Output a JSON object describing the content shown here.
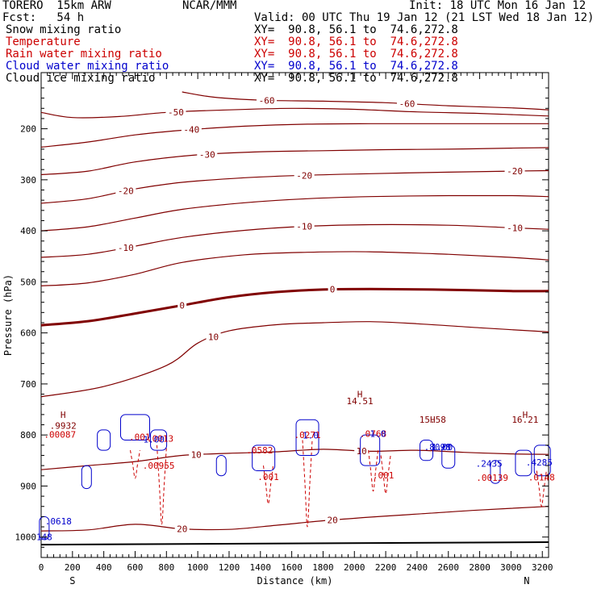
{
  "header": {
    "model": "TORERO  15km ARW",
    "center": "NCAR/MMM",
    "init": "Init: 18 UTC Mon 16 Jan 12",
    "fcst": "Fcst:   54 h",
    "valid": "Valid: 00 UTC Thu 19 Jan 12 (21 LST Wed 18 Jan 12)",
    "fields": [
      {
        "name": "Snow mixing ratio",
        "xy": "XY=  90.8, 56.1 to  74.6,272.8",
        "color": "#000000"
      },
      {
        "name": "Temperature",
        "xy": "XY=  90.8, 56.1 to  74.6,272.8",
        "color": "#cc0000"
      },
      {
        "name": "Rain water mixing ratio",
        "xy": "XY=  90.8, 56.1 to  74.6,272.8",
        "color": "#cc0000"
      },
      {
        "name": "Cloud water mixing ratio",
        "xy": "XY=  90.8, 56.1 to  74.6,272.8",
        "color": "#0000cc"
      },
      {
        "name": "Cloud ice mixing ratio",
        "xy": "XY=  90.8, 56.1 to  74.6,272.8",
        "color": "#000000"
      }
    ]
  },
  "chart_data": {
    "type": "contour",
    "xlabel": "Distance (km)",
    "ylabel": "Pressure (hPa)",
    "xlim": [
      0,
      3240
    ],
    "ylim": [
      1040,
      90
    ],
    "x_ticks": [
      0,
      200,
      400,
      600,
      800,
      1000,
      1200,
      1400,
      1600,
      1800,
      2000,
      2200,
      2400,
      2600,
      2800,
      3000,
      3200
    ],
    "y_ticks": [
      200,
      300,
      400,
      500,
      600,
      700,
      800,
      900,
      1000
    ],
    "end_labels": {
      "left": "S",
      "right": "N"
    },
    "temperature_contours": [
      {
        "level": -60,
        "labels": [
          "-60",
          "-60"
        ],
        "points": [
          [
            900,
            128
          ],
          [
            1100,
            138
          ],
          [
            1400,
            144
          ],
          [
            1800,
            146
          ],
          [
            2200,
            149
          ],
          [
            2600,
            155
          ],
          [
            3000,
            159
          ],
          [
            3240,
            163
          ]
        ]
      },
      {
        "level": -50,
        "labels": [
          "-50"
        ],
        "points": [
          [
            0,
            168
          ],
          [
            200,
            178
          ],
          [
            500,
            176
          ],
          [
            800,
            168
          ],
          [
            1200,
            163
          ],
          [
            1600,
            160
          ],
          [
            2000,
            162
          ],
          [
            2400,
            167
          ],
          [
            2800,
            170
          ],
          [
            3240,
            175
          ]
        ]
      },
      {
        "level": -40,
        "labels": [
          "-40"
        ],
        "points": [
          [
            0,
            236
          ],
          [
            300,
            226
          ],
          [
            600,
            212
          ],
          [
            900,
            203
          ],
          [
            1300,
            195
          ],
          [
            1700,
            191
          ],
          [
            2100,
            190
          ],
          [
            2500,
            190
          ],
          [
            2900,
            190
          ],
          [
            3240,
            190
          ]
        ]
      },
      {
        "level": -30,
        "labels": [
          "-30"
        ],
        "points": [
          [
            0,
            290
          ],
          [
            300,
            283
          ],
          [
            600,
            265
          ],
          [
            1000,
            251
          ],
          [
            1400,
            245
          ],
          [
            1800,
            243
          ],
          [
            2200,
            241
          ],
          [
            2600,
            240
          ],
          [
            3000,
            238
          ],
          [
            3240,
            237
          ]
        ]
      },
      {
        "level": -20,
        "labels": [
          "-20",
          "-20",
          "-20"
        ],
        "points": [
          [
            0,
            346
          ],
          [
            300,
            337
          ],
          [
            600,
            318
          ],
          [
            900,
            305
          ],
          [
            1300,
            296
          ],
          [
            1700,
            291
          ],
          [
            2100,
            288
          ],
          [
            2600,
            285
          ],
          [
            3000,
            283
          ],
          [
            3240,
            282
          ]
        ]
      },
      {
        "level": -20.5,
        "labels": [],
        "points": [
          [
            0,
            400
          ],
          [
            300,
            392
          ],
          [
            600,
            375
          ],
          [
            900,
            358
          ],
          [
            1300,
            345
          ],
          [
            1700,
            337
          ],
          [
            2100,
            333
          ],
          [
            2600,
            331
          ],
          [
            3000,
            331
          ],
          [
            3240,
            333
          ]
        ]
      },
      {
        "level": -10,
        "labels": [
          "-10",
          "-10",
          "-10"
        ],
        "points": [
          [
            0,
            452
          ],
          [
            300,
            446
          ],
          [
            600,
            430
          ],
          [
            900,
            413
          ],
          [
            1300,
            399
          ],
          [
            1700,
            391
          ],
          [
            2100,
            388
          ],
          [
            2600,
            389
          ],
          [
            3000,
            394
          ],
          [
            3240,
            397
          ]
        ]
      },
      {
        "level": -9.5,
        "labels": [],
        "points": [
          [
            0,
            508
          ],
          [
            300,
            502
          ],
          [
            600,
            485
          ],
          [
            900,
            462
          ],
          [
            1300,
            447
          ],
          [
            1700,
            442
          ],
          [
            2100,
            441
          ],
          [
            2600,
            446
          ],
          [
            3000,
            452
          ],
          [
            3240,
            457
          ]
        ]
      },
      {
        "level": 0,
        "labels": [
          "0",
          "0"
        ],
        "bold": true,
        "points": [
          [
            0,
            585
          ],
          [
            300,
            577
          ],
          [
            600,
            562
          ],
          [
            900,
            546
          ],
          [
            1200,
            530
          ],
          [
            1500,
            520
          ],
          [
            1800,
            515
          ],
          [
            2100,
            514
          ],
          [
            2500,
            515
          ],
          [
            3000,
            518
          ],
          [
            3240,
            518
          ]
        ]
      },
      {
        "level": 10,
        "labels": [
          "10"
        ],
        "points": [
          [
            0,
            725
          ],
          [
            400,
            705
          ],
          [
            800,
            664
          ],
          [
            1000,
            620
          ],
          [
            1200,
            596
          ],
          [
            1500,
            584
          ],
          [
            1800,
            580
          ],
          [
            2100,
            578
          ],
          [
            2400,
            582
          ],
          [
            2800,
            590
          ],
          [
            3240,
            598
          ]
        ]
      },
      {
        "level": 10.5,
        "labels": [
          "10",
          "10"
        ],
        "points": [
          [
            0,
            868
          ],
          [
            300,
            860
          ],
          [
            600,
            852
          ],
          [
            900,
            840
          ],
          [
            1200,
            836
          ],
          [
            1500,
            833
          ],
          [
            1800,
            828
          ],
          [
            2100,
            832
          ],
          [
            2400,
            830
          ],
          [
            2700,
            834
          ],
          [
            3000,
            837
          ],
          [
            3240,
            838
          ]
        ]
      },
      {
        "level": 20,
        "labels": [
          "20",
          "20"
        ],
        "points": [
          [
            0,
            988
          ],
          [
            300,
            986
          ],
          [
            600,
            975
          ],
          [
            900,
            984
          ],
          [
            1200,
            985
          ],
          [
            1500,
            977
          ],
          [
            1800,
            968
          ],
          [
            2100,
            961
          ],
          [
            2400,
            955
          ],
          [
            2800,
            947
          ],
          [
            3240,
            940
          ]
        ]
      }
    ],
    "rain_max_labels": [
      {
        "x": 120,
        "p": 805,
        "value": ".00087"
      },
      {
        "x": 630,
        "p": 810,
        "value": ".001"
      },
      {
        "x": 760,
        "p": 813,
        "value": ".0013"
      },
      {
        "x": 750,
        "p": 866,
        "value": ".00955"
      },
      {
        "x": 1395,
        "p": 836,
        "value": ".0582"
      },
      {
        "x": 1450,
        "p": 888,
        "value": ".001"
      },
      {
        "x": 1700,
        "p": 806,
        "value": ".0271"
      },
      {
        "x": 2120,
        "p": 804,
        "value": ".0768"
      },
      {
        "x": 2185,
        "p": 885,
        "value": ".001"
      },
      {
        "x": 2880,
        "p": 890,
        "value": ".00139"
      },
      {
        "x": 3195,
        "p": 889,
        "value": ".0148"
      }
    ],
    "cloud_water_max_labels": [
      {
        "x": 2860,
        "p": 862,
        "value": ".2435"
      },
      {
        "x": 3180,
        "p": 860,
        "value": ".4285"
      },
      {
        "x": 2530,
        "p": 830,
        "value": ".8098"
      },
      {
        "x": 110,
        "p": 975,
        "value": ".0618"
      },
      {
        "x": 20,
        "p": 1006,
        "value": "148"
      }
    ],
    "snow_max_labels": [
      {
        "x": 140,
        "p": 788,
        "value": ".9932"
      },
      {
        "x": 2035,
        "p": 740,
        "value": "14.51"
      },
      {
        "x": 2500,
        "p": 776,
        "value": "15.58"
      },
      {
        "x": 3090,
        "p": 776,
        "value": "16.21"
      }
    ],
    "other_labels": [
      {
        "x": 720,
        "p": 815,
        "value": "1.00"
      },
      {
        "x": 2560,
        "p": 830,
        "value": "1.00"
      },
      {
        "x": 1720,
        "p": 807,
        "value": "1.0"
      },
      {
        "x": 2150,
        "p": 804,
        "value": "1.0"
      }
    ]
  }
}
